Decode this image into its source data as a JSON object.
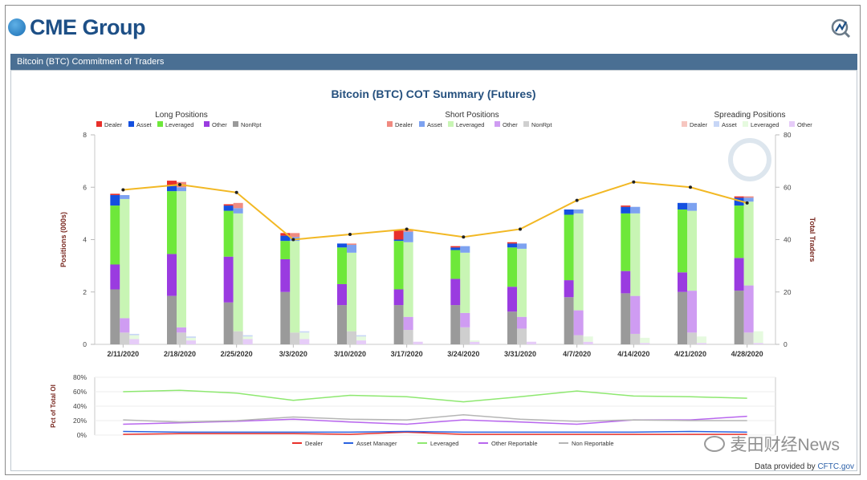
{
  "header": {
    "logo_text": "CME Group",
    "section_title": "Bitcoin (BTC) Commitment of Traders"
  },
  "footer": {
    "provided_prefix": "Data provided by",
    "provided_link": "CFTC.gov"
  },
  "watermark": {
    "text": "麦田财经News"
  },
  "colors": {
    "long": {
      "Dealer": "#e8302a",
      "Asset": "#1450e0",
      "Leveraged": "#6ee83a",
      "Other": "#9a3be0",
      "NonRpt": "#9a9a9a"
    },
    "short": {
      "Dealer": "#f08a80",
      "Asset": "#7da2f0",
      "Leveraged": "#c8f5b4",
      "Other": "#cf9cf2",
      "NonRpt": "#cfcfcf"
    },
    "spread": {
      "Dealer": "#f6c6c0",
      "Asset": "#c7d6f6",
      "Leveraged": "#e6fadf",
      "Other": "#e6ccf8"
    },
    "traders_line": "#f2b824",
    "pct": {
      "Dealer": "#e8302a",
      "Asset Manager": "#2a62e0",
      "Leveraged": "#8ee870",
      "Other Reportable": "#b866ee",
      "Non Reportable": "#b5b5b5"
    }
  },
  "chart_data": [
    {
      "type": "bar",
      "title": "Bitcoin (BTC) COT Summary (Futures)",
      "ylabel": "Positions (000s)",
      "y2label": "Total Traders",
      "ylim": [
        0,
        8
      ],
      "y2lim": [
        0,
        80
      ],
      "yticks": [
        "0",
        "2",
        "4",
        "6",
        "8"
      ],
      "y2ticks": [
        "0",
        "20",
        "40",
        "60",
        "80"
      ],
      "categories": [
        "2/11/2020",
        "2/18/2020",
        "2/25/2020",
        "3/3/2020",
        "3/10/2020",
        "3/17/2020",
        "3/24/2020",
        "3/31/2020",
        "4/7/2020",
        "4/14/2020",
        "4/21/2020",
        "4/28/2020"
      ],
      "groups": [
        {
          "name": "Long Positions",
          "legend": [
            "Dealer",
            "Asset",
            "Leveraged",
            "Other",
            "NonRpt"
          ]
        },
        {
          "name": "Short Positions",
          "legend": [
            "Dealer",
            "Asset",
            "Leveraged",
            "Other",
            "NonRpt"
          ]
        },
        {
          "name": "Spreading Positions",
          "legend": [
            "Dealer",
            "Asset",
            "Leveraged",
            "Other"
          ]
        }
      ],
      "long": {
        "NonRpt": [
          2.1,
          1.85,
          1.6,
          2.0,
          1.5,
          1.5,
          1.5,
          1.25,
          1.8,
          1.95,
          2.0,
          2.05
        ],
        "Other": [
          0.95,
          1.6,
          1.75,
          1.25,
          0.8,
          0.6,
          1.0,
          0.95,
          0.65,
          0.85,
          0.75,
          1.25
        ],
        "Leveraged": [
          2.25,
          2.4,
          1.75,
          0.7,
          1.4,
          1.85,
          1.1,
          1.5,
          2.5,
          2.2,
          2.4,
          2.0
        ],
        "Asset": [
          0.4,
          0.2,
          0.2,
          0.2,
          0.15,
          0.05,
          0.1,
          0.15,
          0.2,
          0.25,
          0.25,
          0.3
        ],
        "Dealer": [
          0.05,
          0.2,
          0.05,
          0.1,
          0.0,
          0.35,
          0.05,
          0.05,
          0.0,
          0.05,
          0.0,
          0.05
        ]
      },
      "short": {
        "NonRpt": [
          0.45,
          0.45,
          0.5,
          0.45,
          0.5,
          0.55,
          0.65,
          0.6,
          0.35,
          0.4,
          0.45,
          0.45
        ],
        "Other": [
          0.55,
          0.2,
          0.0,
          0.0,
          0.0,
          0.5,
          0.55,
          0.45,
          0.95,
          1.45,
          1.6,
          1.8
        ],
        "Leveraged": [
          4.55,
          5.2,
          4.5,
          3.5,
          3.0,
          2.85,
          2.3,
          2.6,
          3.7,
          3.15,
          3.05,
          3.2
        ],
        "Asset": [
          0.15,
          0.15,
          0.2,
          0.15,
          0.3,
          0.4,
          0.25,
          0.2,
          0.15,
          0.25,
          0.3,
          0.15
        ],
        "Dealer": [
          0.0,
          0.2,
          0.2,
          0.15,
          0.05,
          0.1,
          0.0,
          0.0,
          0.0,
          0.0,
          0.0,
          0.05
        ]
      },
      "spread": {
        "Dealer": [
          0.0,
          0.0,
          0.0,
          0.0,
          0.0,
          0.0,
          0.0,
          0.0,
          0.0,
          0.0,
          0.0,
          0.0
        ],
        "Asset": [
          0.05,
          0.05,
          0.05,
          0.05,
          0.05,
          0.0,
          0.0,
          0.0,
          0.0,
          0.0,
          0.0,
          0.0
        ],
        "Leveraged": [
          0.15,
          0.1,
          0.1,
          0.25,
          0.15,
          0.0,
          0.05,
          0.0,
          0.2,
          0.2,
          0.25,
          0.45
        ],
        "Other": [
          0.2,
          0.15,
          0.2,
          0.2,
          0.15,
          0.1,
          0.1,
          0.1,
          0.1,
          0.05,
          0.05,
          0.05
        ]
      },
      "total_traders": [
        59,
        61,
        58,
        40,
        42,
        44,
        41,
        44,
        55,
        62,
        60,
        54
      ]
    },
    {
      "type": "line",
      "ylabel": "Pct of Total OI",
      "ylim": [
        0,
        80
      ],
      "yticks": [
        "0%",
        "20%",
        "40%",
        "60%",
        "80%"
      ],
      "categories": [
        "2/11/2020",
        "2/18/2020",
        "2/25/2020",
        "3/3/2020",
        "3/10/2020",
        "3/17/2020",
        "3/24/2020",
        "3/31/2020",
        "4/7/2020",
        "4/14/2020",
        "4/21/2020",
        "4/28/2020"
      ],
      "series": [
        {
          "name": "Dealer",
          "values": [
            1,
            2,
            2,
            2,
            1,
            4,
            1,
            1,
            1,
            1,
            1,
            1
          ]
        },
        {
          "name": "Asset Manager",
          "values": [
            5,
            4,
            4,
            4,
            4,
            5,
            4,
            4,
            4,
            4,
            5,
            4
          ]
        },
        {
          "name": "Leveraged",
          "values": [
            60,
            62,
            58,
            48,
            55,
            53,
            46,
            53,
            61,
            54,
            53,
            51
          ]
        },
        {
          "name": "Other Reportable",
          "values": [
            15,
            17,
            19,
            22,
            18,
            15,
            21,
            18,
            15,
            21,
            21,
            26
          ]
        },
        {
          "name": "Non Reportable",
          "values": [
            21,
            18,
            20,
            25,
            22,
            21,
            28,
            22,
            19,
            21,
            20,
            20
          ]
        }
      ]
    }
  ]
}
